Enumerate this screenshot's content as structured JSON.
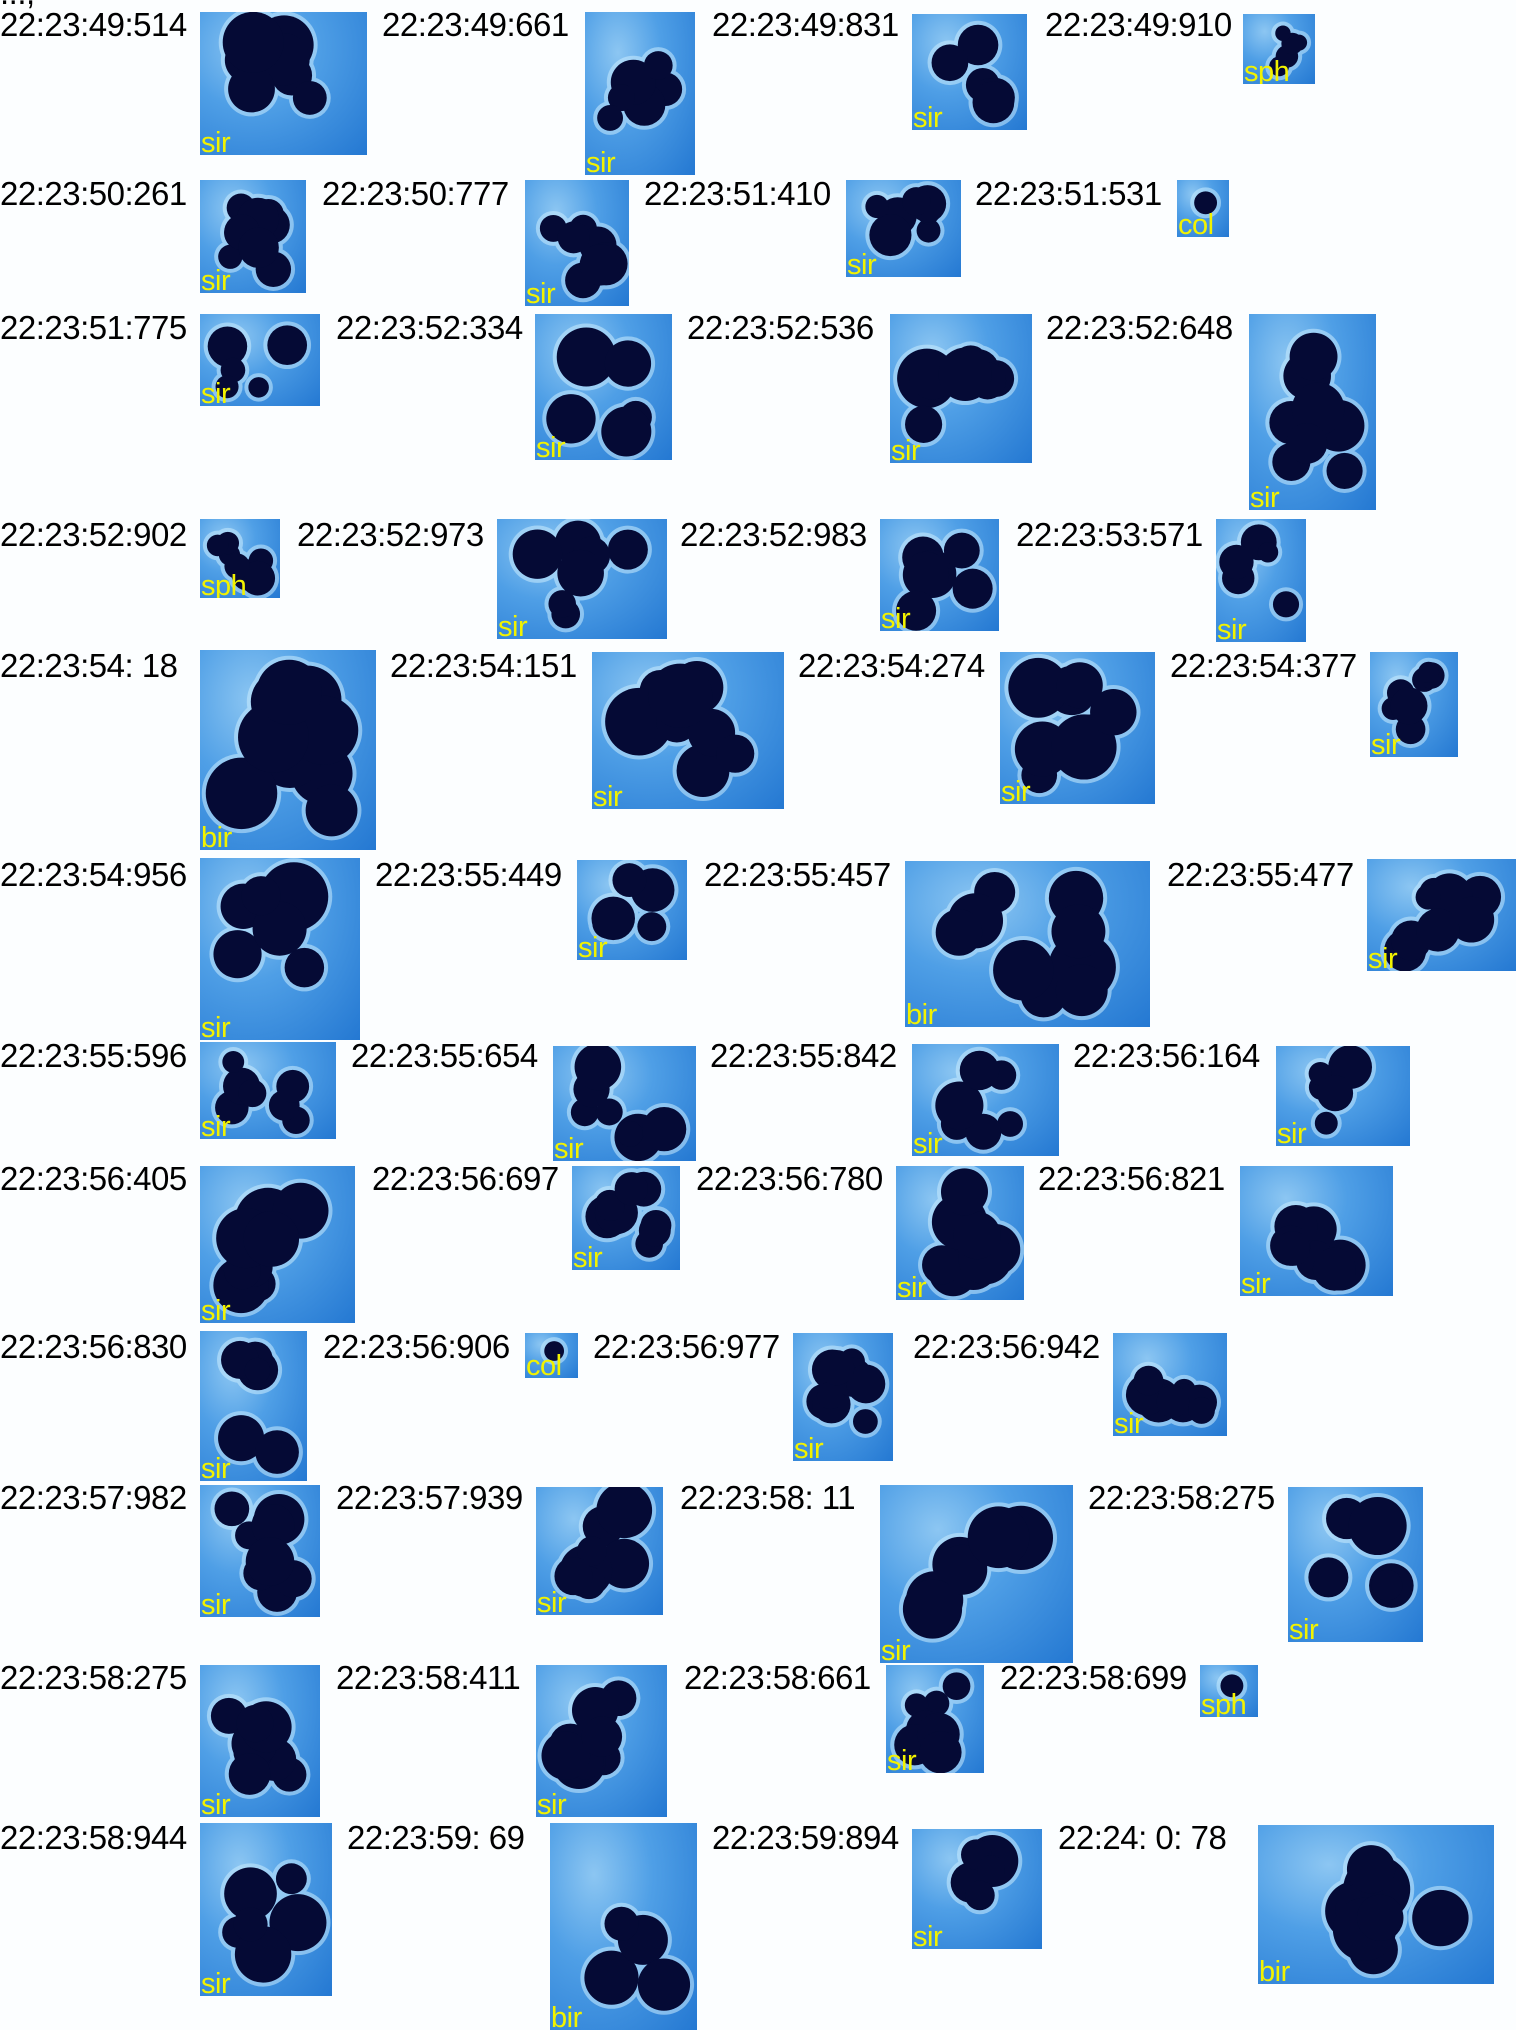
{
  "header_fragment": "...,",
  "particles": [
    {
      "time": "22:23:49:514",
      "class": "sir"
    },
    {
      "time": "22:23:49:661",
      "class": "sir"
    },
    {
      "time": "22:23:49:831",
      "class": "sir"
    },
    {
      "time": "22:23:49:910",
      "class": "sph"
    },
    {
      "time": "22:23:50:261",
      "class": "sir"
    },
    {
      "time": "22:23:50:777",
      "class": "sir"
    },
    {
      "time": "22:23:51:410",
      "class": "sir"
    },
    {
      "time": "22:23:51:531",
      "class": "col"
    },
    {
      "time": "22:23:51:775",
      "class": "sir"
    },
    {
      "time": "22:23:52:334",
      "class": "sir"
    },
    {
      "time": "22:23:52:536",
      "class": "sir"
    },
    {
      "time": "22:23:52:648",
      "class": "sir"
    },
    {
      "time": "22:23:52:902",
      "class": "sph"
    },
    {
      "time": "22:23:52:973",
      "class": "sir"
    },
    {
      "time": "22:23:52:983",
      "class": "sir"
    },
    {
      "time": "22:23:53:571",
      "class": "sir"
    },
    {
      "time": "22:23:54: 18",
      "class": "bir"
    },
    {
      "time": "22:23:54:151",
      "class": "sir"
    },
    {
      "time": "22:23:54:274",
      "class": "sir"
    },
    {
      "time": "22:23:54:377",
      "class": "sir"
    },
    {
      "time": "22:23:54:956",
      "class": "sir"
    },
    {
      "time": "22:23:55:449",
      "class": "sir"
    },
    {
      "time": "22:23:55:457",
      "class": "bir"
    },
    {
      "time": "22:23:55:477",
      "class": "sir"
    },
    {
      "time": "22:23:55:596",
      "class": "sir"
    },
    {
      "time": "22:23:55:654",
      "class": "sir"
    },
    {
      "time": "22:23:55:842",
      "class": "sir"
    },
    {
      "time": "22:23:56:164",
      "class": "sir"
    },
    {
      "time": "22:23:56:405",
      "class": "sir"
    },
    {
      "time": "22:23:56:697",
      "class": "sir"
    },
    {
      "time": "22:23:56:780",
      "class": "sir"
    },
    {
      "time": "22:23:56:821",
      "class": "sir"
    },
    {
      "time": "22:23:56:830",
      "class": "sir"
    },
    {
      "time": "22:23:56:906",
      "class": "col"
    },
    {
      "time": "22:23:56:977",
      "class": "sir"
    },
    {
      "time": "22:23:56:942",
      "class": "sir"
    },
    {
      "time": "22:23:57:982",
      "class": "sir"
    },
    {
      "time": "22:23:57:939",
      "class": "sir"
    },
    {
      "time": "22:23:58: 11",
      "class": "sir"
    },
    {
      "time": "22:23:58:275",
      "class": "sir"
    },
    {
      "time": "22:23:58:275",
      "class": "sir"
    },
    {
      "time": "22:23:58:411",
      "class": "sir"
    },
    {
      "time": "22:23:58:661",
      "class": "sir"
    },
    {
      "time": "22:23:58:699",
      "class": "sph"
    },
    {
      "time": "22:23:58:944",
      "class": "sir"
    },
    {
      "time": "22:23:59: 69",
      "class": "bir"
    },
    {
      "time": "22:23:59:894",
      "class": "sir"
    },
    {
      "time": "22:24: 0: 78",
      "class": "bir"
    }
  ]
}
